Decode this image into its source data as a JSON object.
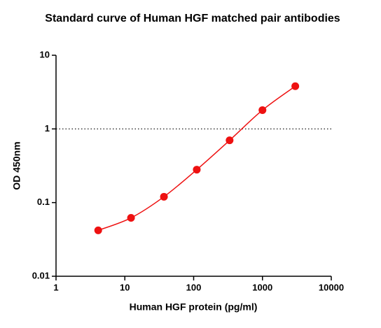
{
  "chart_data": {
    "type": "scatter",
    "title": "Standard curve of Human HGF matched pair antibodies",
    "xlabel": "Human HGF protein (pg/ml)",
    "ylabel": "OD 450nm",
    "x": [
      4.1,
      12.3,
      37,
      111,
      333,
      1000,
      3000
    ],
    "series": [
      {
        "color": "#ee1111",
        "values": [
          0.042,
          0.062,
          0.12,
          0.28,
          0.7,
          1.8,
          3.8
        ]
      }
    ],
    "fit_line": true,
    "reference_line": 1,
    "xscale": "log",
    "yscale": "log",
    "xlim": [
      1,
      10000
    ],
    "xticks": [
      1,
      10,
      100,
      1000,
      10000
    ],
    "ylim": [
      0.01,
      10
    ],
    "yticks": [
      0.01,
      0.1,
      1,
      10
    ]
  }
}
